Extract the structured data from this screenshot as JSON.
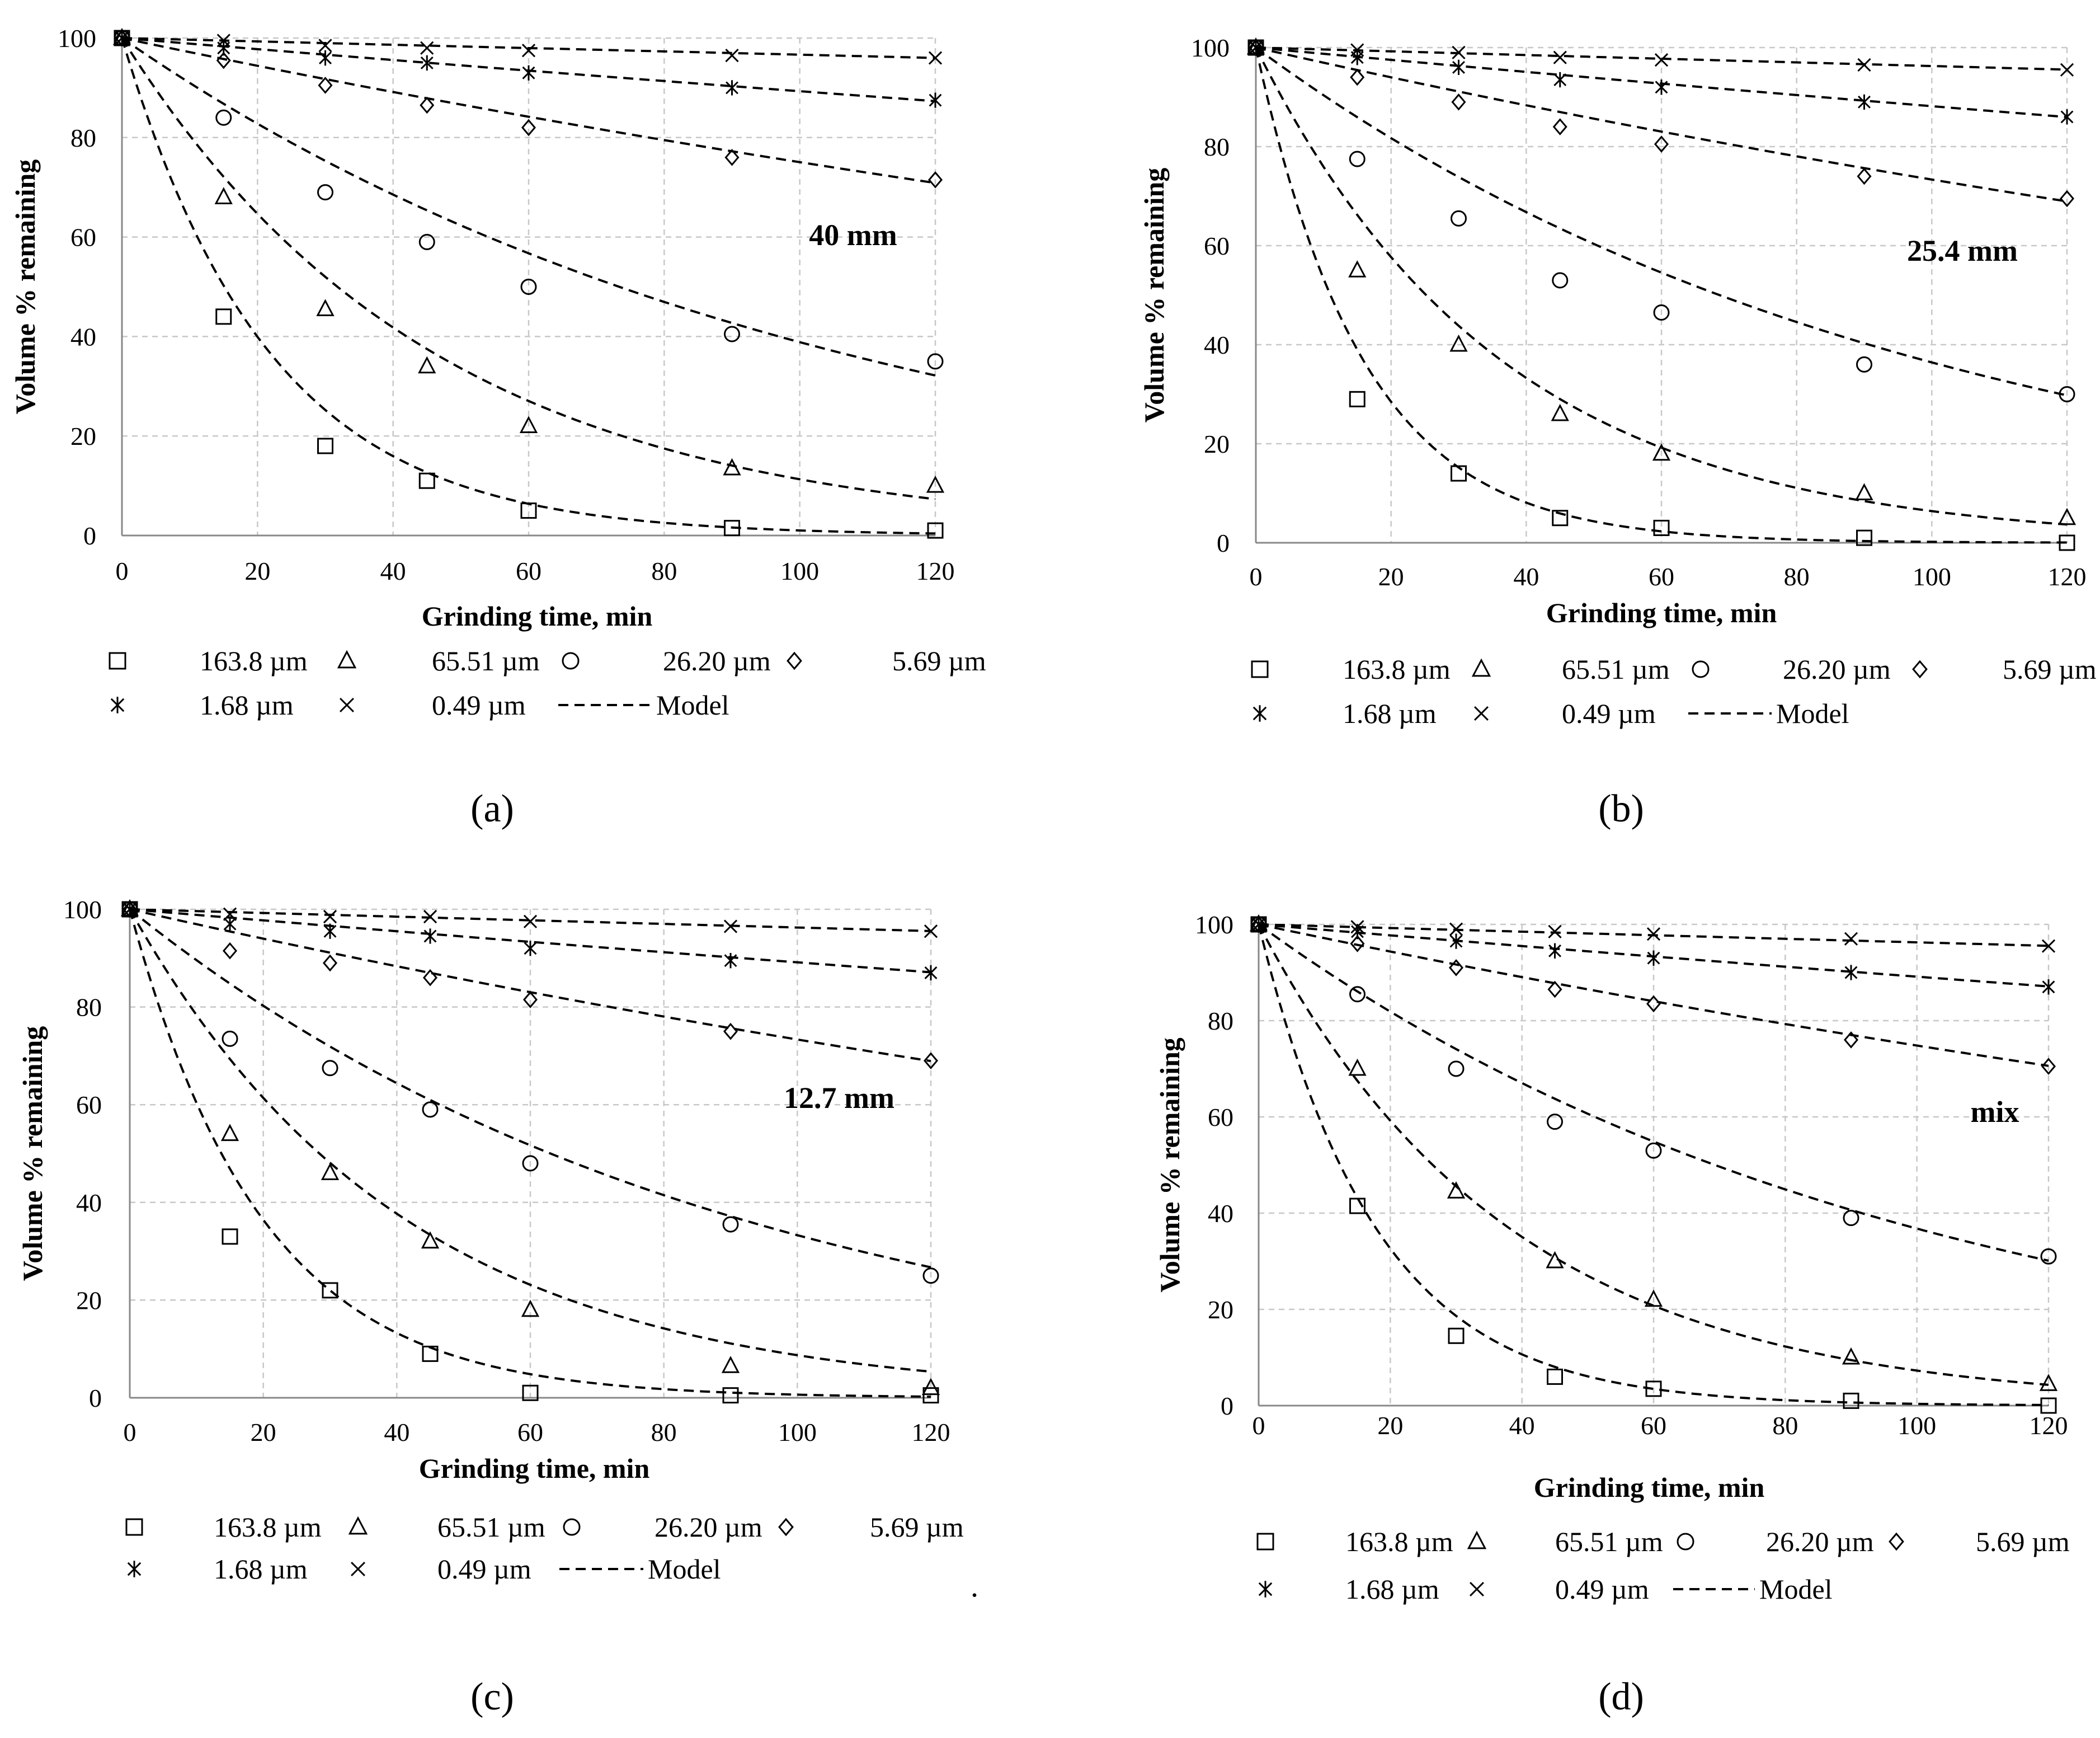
{
  "colors": {
    "background": "#ffffff",
    "ink": "#000000",
    "grid": "#c8c8c8",
    "axis": "#888888"
  },
  "legend_entries": [
    {
      "label": "163.8 µm",
      "marker": "square"
    },
    {
      "label": "65.51 µm",
      "marker": "triangle"
    },
    {
      "label": "26.20 µm",
      "marker": "circle"
    },
    {
      "label": "5.69 µm",
      "marker": "diamond"
    },
    {
      "label": "1.68 µm",
      "marker": "asterisk"
    },
    {
      "label": "0.49 µm",
      "marker": "cross"
    },
    {
      "label": "Model",
      "marker": "dashed-line"
    }
  ],
  "stray_mark": ".",
  "chart_data": [
    {
      "id": "a",
      "type": "scatter",
      "caption": "(a)",
      "annotation": "40 mm",
      "xlabel": "Grinding time, min",
      "ylabel": "Volume % remaining",
      "xlim": [
        0,
        120
      ],
      "ylim": [
        0,
        100
      ],
      "xticks": [
        0,
        20,
        40,
        60,
        80,
        100,
        120
      ],
      "yticks": [
        0,
        20,
        40,
        60,
        80,
        100
      ],
      "grid": true,
      "legend_position": "bottom",
      "x": [
        0,
        15,
        30,
        45,
        60,
        90,
        120
      ],
      "series": [
        {
          "name": "163.8 µm",
          "marker": "square",
          "values": [
            100,
            44,
            18,
            11,
            5,
            1.5,
            1
          ],
          "model_k": 0.0459
        },
        {
          "name": "65.51 µm",
          "marker": "triangle",
          "values": [
            100,
            68,
            45.5,
            34,
            22,
            13.5,
            10
          ],
          "model_k": 0.0218
        },
        {
          "name": "26.20 µm",
          "marker": "circle",
          "values": [
            100,
            84,
            69,
            59,
            50,
            40.5,
            35
          ],
          "model_k": 0.00945
        },
        {
          "name": "5.69 µm",
          "marker": "diamond",
          "values": [
            100,
            95.5,
            90.5,
            86.5,
            82,
            76,
            71.5
          ],
          "model_k": 0.00287
        },
        {
          "name": "1.68 µm",
          "marker": "asterisk",
          "values": [
            100,
            98,
            96,
            95,
            93,
            90,
            87.5
          ],
          "model_k": 0.00113
        },
        {
          "name": "0.49 µm",
          "marker": "cross",
          "values": [
            100,
            99.5,
            98.5,
            98,
            97.5,
            96.5,
            96
          ],
          "model_k": 0.00034
        }
      ]
    },
    {
      "id": "b",
      "type": "scatter",
      "caption": "(b)",
      "annotation": "25.4 mm",
      "xlabel": "Grinding time, min",
      "ylabel": "Volume % remaining",
      "xlim": [
        0,
        120
      ],
      "ylim": [
        0,
        100
      ],
      "xticks": [
        0,
        20,
        40,
        60,
        80,
        100,
        120
      ],
      "yticks": [
        0,
        20,
        40,
        60,
        80,
        100
      ],
      "grid": true,
      "legend_position": "bottom",
      "x": [
        0,
        15,
        30,
        45,
        60,
        90,
        120
      ],
      "series": [
        {
          "name": "163.8 µm",
          "marker": "square",
          "values": [
            100,
            29,
            14,
            5,
            3,
            1,
            0
          ],
          "model_k": 0.0628
        },
        {
          "name": "65.51 µm",
          "marker": "triangle",
          "values": [
            100,
            55,
            40,
            26,
            18,
            10,
            5
          ],
          "model_k": 0.0275
        },
        {
          "name": "26.20 µm",
          "marker": "circle",
          "values": [
            100,
            77.5,
            65.5,
            53,
            46.5,
            36,
            30
          ],
          "model_k": 0.0101
        },
        {
          "name": "5.69 µm",
          "marker": "diamond",
          "values": [
            100,
            94,
            89,
            84,
            80.5,
            74,
            69.5
          ],
          "model_k": 0.0031
        },
        {
          "name": "1.68 µm",
          "marker": "asterisk",
          "values": [
            100,
            98,
            96,
            93.5,
            92,
            89,
            86
          ],
          "model_k": 0.00126
        },
        {
          "name": "0.49 µm",
          "marker": "cross",
          "values": [
            100,
            99.5,
            99,
            98,
            97.5,
            96.5,
            95.5
          ],
          "model_k": 0.00038
        }
      ]
    },
    {
      "id": "c",
      "type": "scatter",
      "caption": "(c)",
      "annotation": "12.7 mm",
      "xlabel": "Grinding time, min",
      "ylabel": "Volume % remaining",
      "xlim": [
        0,
        120
      ],
      "ylim": [
        0,
        100
      ],
      "xticks": [
        0,
        20,
        40,
        60,
        80,
        100,
        120
      ],
      "yticks": [
        0,
        20,
        40,
        60,
        80,
        100
      ],
      "grid": true,
      "legend_position": "bottom",
      "x": [
        0,
        15,
        30,
        45,
        60,
        90,
        120
      ],
      "series": [
        {
          "name": "163.8 µm",
          "marker": "square",
          "values": [
            100,
            33,
            22,
            9,
            1,
            0.5,
            0.5
          ],
          "model_k": 0.0505
        },
        {
          "name": "65.51 µm",
          "marker": "triangle",
          "values": [
            100,
            54,
            46,
            32,
            18,
            6.5,
            2
          ],
          "model_k": 0.0244
        },
        {
          "name": "26.20 µm",
          "marker": "circle",
          "values": [
            100,
            73.5,
            67.5,
            59,
            48,
            35.5,
            25
          ],
          "model_k": 0.011
        },
        {
          "name": "5.69 µm",
          "marker": "diamond",
          "values": [
            100,
            91.5,
            89,
            86,
            81.5,
            75,
            69
          ],
          "model_k": 0.0031
        },
        {
          "name": "1.68 µm",
          "marker": "asterisk",
          "values": [
            100,
            97,
            95.5,
            94.5,
            92,
            89.5,
            87
          ],
          "model_k": 0.00115
        },
        {
          "name": "0.49 µm",
          "marker": "cross",
          "values": [
            100,
            99,
            98.5,
            98.5,
            97.5,
            96.5,
            95.5
          ],
          "model_k": 0.00038
        }
      ]
    },
    {
      "id": "d",
      "type": "scatter",
      "caption": "(d)",
      "annotation": "mix",
      "xlabel": "Grinding time, min",
      "ylabel": "Volume % remaining",
      "xlim": [
        0,
        120
      ],
      "ylim": [
        0,
        100
      ],
      "xticks": [
        0,
        20,
        40,
        60,
        80,
        100,
        120
      ],
      "yticks": [
        0,
        20,
        40,
        60,
        80,
        100
      ],
      "grid": true,
      "legend_position": "bottom",
      "x": [
        0,
        15,
        30,
        45,
        60,
        90,
        120
      ],
      "series": [
        {
          "name": "163.8 µm",
          "marker": "square",
          "values": [
            100,
            41.5,
            14.5,
            6,
            3.5,
            1,
            0
          ],
          "model_k": 0.056
        },
        {
          "name": "65.51 µm",
          "marker": "triangle",
          "values": [
            100,
            70,
            44.5,
            30,
            22,
            10,
            4.5
          ],
          "model_k": 0.0262
        },
        {
          "name": "26.20 µm",
          "marker": "circle",
          "values": [
            100,
            85.5,
            70,
            59,
            53,
            39,
            31
          ],
          "model_k": 0.01
        },
        {
          "name": "5.69 µm",
          "marker": "diamond",
          "values": [
            100,
            96,
            91,
            86.5,
            83.5,
            76,
            70.5
          ],
          "model_k": 0.0029
        },
        {
          "name": "1.68 µm",
          "marker": "asterisk",
          "values": [
            100,
            98.5,
            96.5,
            94.5,
            93,
            90,
            87
          ],
          "model_k": 0.00115
        },
        {
          "name": "0.49 µm",
          "marker": "cross",
          "values": [
            100,
            99.5,
            99,
            98.5,
            98,
            97,
            95.5
          ],
          "model_k": 0.00038
        }
      ]
    }
  ]
}
